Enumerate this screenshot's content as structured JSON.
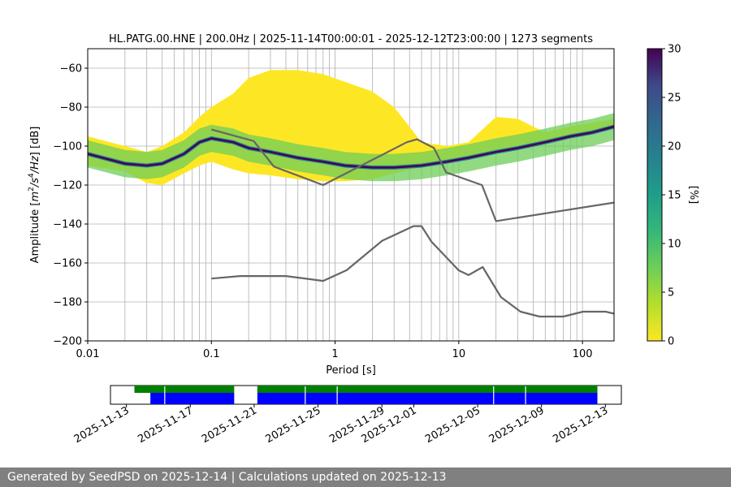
{
  "chart_data": {
    "type": "heatmap",
    "title": "HL.PATG.00.HNE | 200.0Hz | 2025-11-14T00:00:01 - 2025-12-12T23:00:00 | 1273 segments",
    "xlabel": "Period [s]",
    "ylabel_parts": [
      "Amplitude [",
      "m",
      "2",
      "/",
      "s",
      "4",
      "/",
      "Hz",
      "] [dB]"
    ],
    "x_scale": "log",
    "xlim": [
      0.01,
      180
    ],
    "ylim": [
      -200,
      -50
    ],
    "x_ticks": [
      {
        "value": 0.01,
        "label": "0.01"
      },
      {
        "value": 0.1,
        "label": "0.1"
      },
      {
        "value": 1,
        "label": "1"
      },
      {
        "value": 10,
        "label": "10"
      },
      {
        "value": 100,
        "label": "100"
      }
    ],
    "y_ticks": [
      -60,
      -80,
      -100,
      -120,
      -140,
      -160,
      -180,
      -200
    ],
    "grid": true,
    "colorbar": {
      "label": "[%]",
      "min": 0,
      "max": 30,
      "ticks": [
        0,
        5,
        10,
        15,
        20,
        25,
        30
      ],
      "colormap": "viridis_r"
    },
    "psd_mode": [
      [
        0.01,
        -104
      ],
      [
        0.02,
        -109
      ],
      [
        0.03,
        -110
      ],
      [
        0.04,
        -109
      ],
      [
        0.06,
        -104
      ],
      [
        0.08,
        -98
      ],
      [
        0.1,
        -96
      ],
      [
        0.15,
        -98
      ],
      [
        0.2,
        -101
      ],
      [
        0.3,
        -103
      ],
      [
        0.5,
        -106
      ],
      [
        0.8,
        -108
      ],
      [
        1.2,
        -110
      ],
      [
        2,
        -111
      ],
      [
        3,
        -111
      ],
      [
        5,
        -110
      ],
      [
        8,
        -108
      ],
      [
        12,
        -106
      ],
      [
        20,
        -103
      ],
      [
        30,
        -101
      ],
      [
        50,
        -98
      ],
      [
        80,
        -95
      ],
      [
        120,
        -93
      ],
      [
        180,
        -90
      ]
    ],
    "psd_band": {
      "lower": [
        [
          0.01,
          -110
        ],
        [
          0.02,
          -113
        ],
        [
          0.03,
          -119
        ],
        [
          0.04,
          -120
        ],
        [
          0.06,
          -114
        ],
        [
          0.08,
          -110
        ],
        [
          0.1,
          -108
        ],
        [
          0.15,
          -112
        ],
        [
          0.2,
          -114
        ],
        [
          0.3,
          -115
        ],
        [
          0.5,
          -117
        ],
        [
          0.8,
          -118
        ],
        [
          1.2,
          -118
        ],
        [
          2,
          -117
        ],
        [
          3,
          -114
        ],
        [
          5,
          -111
        ],
        [
          8,
          -109
        ],
        [
          12,
          -107
        ],
        [
          20,
          -104
        ],
        [
          30,
          -102
        ],
        [
          50,
          -99
        ],
        [
          80,
          -96
        ],
        [
          120,
          -94
        ],
        [
          180,
          -91
        ]
      ],
      "upper": [
        [
          0.01,
          -95
        ],
        [
          0.02,
          -100
        ],
        [
          0.03,
          -103
        ],
        [
          0.04,
          -100
        ],
        [
          0.06,
          -93
        ],
        [
          0.08,
          -85
        ],
        [
          0.1,
          -80
        ],
        [
          0.15,
          -73
        ],
        [
          0.2,
          -65
        ],
        [
          0.3,
          -61
        ],
        [
          0.5,
          -61
        ],
        [
          0.8,
          -63
        ],
        [
          1.2,
          -67
        ],
        [
          2,
          -72
        ],
        [
          3,
          -80
        ],
        [
          5,
          -98
        ],
        [
          8,
          -100
        ],
        [
          12,
          -98
        ],
        [
          20,
          -85
        ],
        [
          30,
          -86
        ],
        [
          50,
          -93
        ],
        [
          80,
          -90
        ],
        [
          120,
          -88
        ],
        [
          180,
          -86
        ]
      ]
    },
    "nhnm": [
      [
        0.1,
        -91.5
      ],
      [
        0.22,
        -97.4
      ],
      [
        0.32,
        -110.5
      ],
      [
        0.8,
        -120
      ],
      [
        3.8,
        -98
      ],
      [
        4.6,
        -96.5
      ],
      [
        6.3,
        -101
      ],
      [
        7.9,
        -113.5
      ],
      [
        15.4,
        -120
      ],
      [
        20,
        -138.5
      ],
      [
        180,
        -129
      ]
    ],
    "nlnm": [
      [
        0.1,
        -168
      ],
      [
        0.17,
        -166.7
      ],
      [
        0.4,
        -166.7
      ],
      [
        0.8,
        -169.2
      ],
      [
        1.24,
        -163.7
      ],
      [
        2.4,
        -148.6
      ],
      [
        4.3,
        -141.1
      ],
      [
        5,
        -141.1
      ],
      [
        6,
        -149
      ],
      [
        10,
        -163.8
      ],
      [
        12,
        -166.2
      ],
      [
        15.6,
        -162.1
      ],
      [
        21.9,
        -177.5
      ],
      [
        31.6,
        -185
      ],
      [
        45,
        -187.5
      ],
      [
        70,
        -187.5
      ],
      [
        101,
        -185
      ],
      [
        154,
        -185
      ],
      [
        180,
        -186
      ]
    ]
  },
  "availability": {
    "xlim_dates": [
      "2025-11-12",
      "2025-12-14"
    ],
    "tick_labels": [
      "2025-11-13",
      "2025-11-17",
      "2025-11-21",
      "2025-11-25",
      "2025-11-29",
      "2025-12-01",
      "2025-12-05",
      "2025-12-09",
      "2025-12-13"
    ],
    "data_bars": [
      {
        "color": "#008000",
        "start": "2025-11-13.5",
        "end": "2025-11-19.75"
      },
      {
        "color": "#008000",
        "start": "2025-11-21.2",
        "end": "2025-12-12.5"
      }
    ],
    "psd_bars": [
      {
        "color": "#0000ff",
        "start": "2025-11-14.5",
        "end": "2025-11-19.75"
      },
      {
        "color": "#0000ff",
        "start": "2025-11-21.2",
        "end": "2025-12-12.5"
      }
    ],
    "gap_markers": [
      "2025-11-15.4",
      "2025-11-24.2",
      "2025-11-26.2",
      "2025-12-06.0",
      "2025-12-08.0"
    ]
  },
  "footer": {
    "text": "Generated by SeedPSD on 2025-12-14 | Calculations updated on 2025-12-13"
  }
}
